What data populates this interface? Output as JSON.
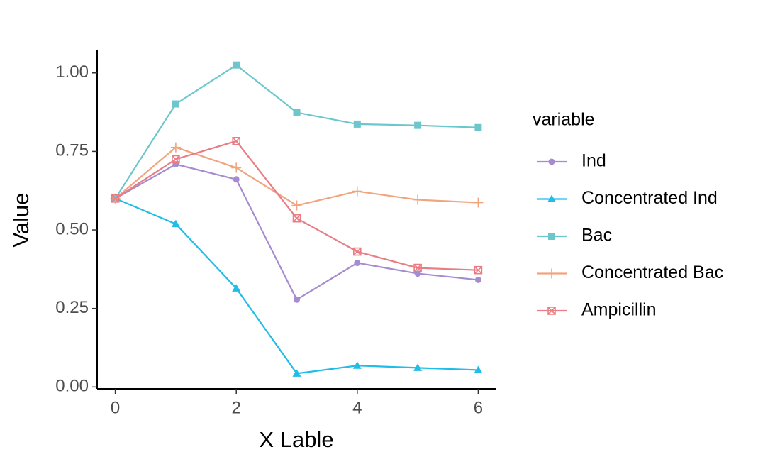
{
  "chart_data": {
    "type": "line",
    "x_label": "X Lable",
    "y_label": "Value",
    "legend_title": "variable",
    "legend_position": "right",
    "x": [
      0,
      1,
      2,
      3,
      4,
      5,
      6
    ],
    "xlim": [
      -0.3,
      6.3
    ],
    "xticks": [
      0,
      2,
      4,
      6
    ],
    "ylim": [
      -0.006,
      1.074
    ],
    "yticks": [
      {
        "value": 0,
        "label": "0.00"
      },
      {
        "value": 0.25,
        "label": "0.25"
      },
      {
        "value": 0.5,
        "label": "0.50"
      },
      {
        "value": 0.75,
        "label": "0.75"
      },
      {
        "value": 1,
        "label": "1.00"
      }
    ],
    "grid": false,
    "series": [
      {
        "name": "Ind",
        "color": "#a68bd0",
        "marker": "circle",
        "values": [
          0.6,
          0.709,
          0.661,
          0.278,
          0.395,
          0.361,
          0.341
        ]
      },
      {
        "name": "Concentrated Ind",
        "color": "#1fbde8",
        "marker": "triangle",
        "values": [
          0.6,
          0.519,
          0.314,
          0.043,
          0.068,
          0.061,
          0.054
        ]
      },
      {
        "name": "Bac",
        "color": "#6cc7cc",
        "marker": "square",
        "values": [
          0.6,
          0.901,
          1.025,
          0.874,
          0.837,
          0.833,
          0.826
        ]
      },
      {
        "name": "Concentrated Bac",
        "color": "#f0a57e",
        "marker": "plus",
        "values": [
          0.6,
          0.763,
          0.698,
          0.578,
          0.623,
          0.596,
          0.587
        ]
      },
      {
        "name": "Ampicillin",
        "color": "#ea7c84",
        "marker": "square-cross",
        "values": [
          0.6,
          0.725,
          0.783,
          0.537,
          0.431,
          0.379,
          0.372
        ]
      }
    ]
  }
}
